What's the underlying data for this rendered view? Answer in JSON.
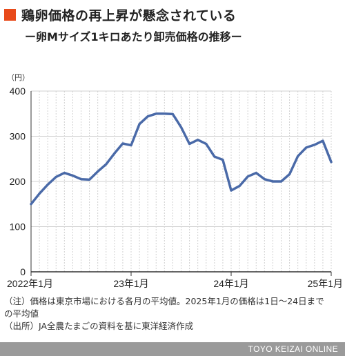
{
  "header": {
    "title": "鶏卵価格の再上昇が懸念されている",
    "subtitle": "ー卵Mサイズ1キロあたり卸売価格の推移ー"
  },
  "colors": {
    "accent": "#e84a1a",
    "line": "#4a6aa8",
    "grid": "#d0d0d0",
    "axis": "#333333",
    "footer": "#9a9a9a"
  },
  "notes": {
    "line1": "（注）価格は東京市場における各月の平均値。2025年1月の価格は1日～24日まで",
    "line2": "の平均値",
    "line3": "（出所）JA全農たまごの資料を基に東洋経済作成"
  },
  "footer": {
    "brand": "TOYO KEIZAI ONLINE"
  },
  "chart_data": {
    "type": "line",
    "ylabel": "（円）",
    "ylim": [
      0,
      400
    ],
    "yticks": [
      0,
      100,
      200,
      300,
      400
    ],
    "xtick_labels": [
      {
        "index": 0,
        "label": "2022年1月"
      },
      {
        "index": 12,
        "label": "23年1月"
      },
      {
        "index": 24,
        "label": "24年1月"
      },
      {
        "index": 36,
        "label": "25年1月"
      }
    ],
    "x": [
      "2022-01",
      "2022-02",
      "2022-03",
      "2022-04",
      "2022-05",
      "2022-06",
      "2022-07",
      "2022-08",
      "2022-09",
      "2022-10",
      "2022-11",
      "2022-12",
      "2023-01",
      "2023-02",
      "2023-03",
      "2023-04",
      "2023-05",
      "2023-06",
      "2023-07",
      "2023-08",
      "2023-09",
      "2023-10",
      "2023-11",
      "2023-12",
      "2024-01",
      "2024-02",
      "2024-03",
      "2024-04",
      "2024-05",
      "2024-06",
      "2024-07",
      "2024-08",
      "2024-09",
      "2024-10",
      "2024-11",
      "2024-12",
      "2025-01"
    ],
    "series": [
      {
        "values": [
          150,
          173,
          193,
          210,
          219,
          213,
          205,
          204,
          222,
          238,
          262,
          284,
          280,
          327,
          344,
          350,
          350,
          349,
          320,
          283,
          292,
          283,
          255,
          248,
          180,
          190,
          211,
          219,
          205,
          200,
          200,
          216,
          256,
          275,
          281,
          290,
          243
        ]
      }
    ],
    "grid": true
  }
}
